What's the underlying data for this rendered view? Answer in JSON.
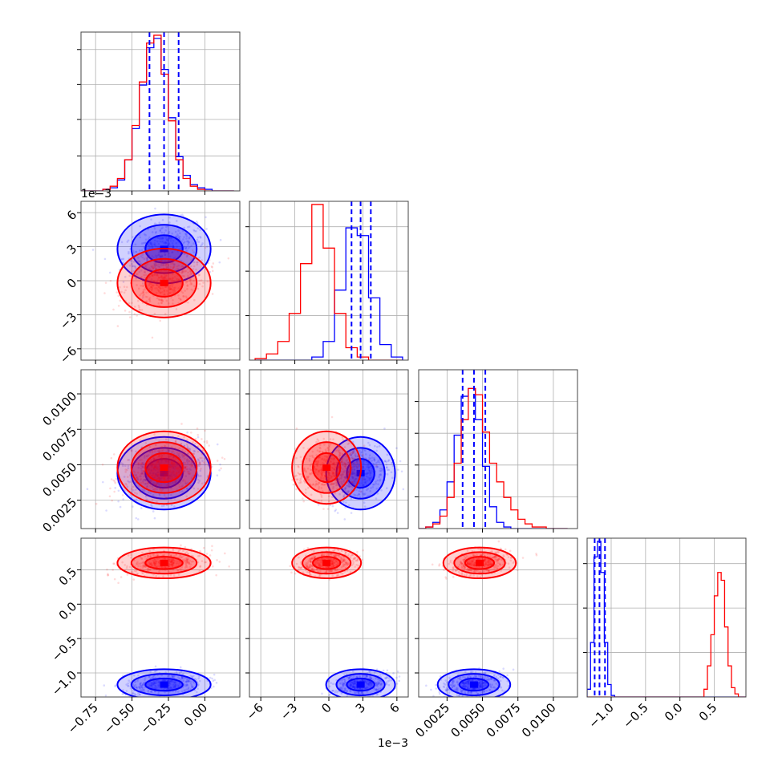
{
  "chart_data": {
    "type": "corner",
    "colors": {
      "red": "#ff0000",
      "blue": "#0000ff"
    },
    "series": [
      "red",
      "blue"
    ],
    "grid": true,
    "xlabel": "",
    "ylabel": "",
    "offsets": {
      "x1": "1e−3",
      "y1": "1e−3"
    },
    "ranges": [
      [
        -0.85,
        0.24
      ],
      [
        -7.0,
        7.0
      ],
      [
        0.0005,
        0.0117
      ],
      [
        -1.35,
        0.96
      ]
    ],
    "ticks": [
      {
        "values": [
          -0.75,
          -0.5,
          -0.25,
          0.0
        ],
        "labels": [
          "−0.75",
          "−0.50",
          "−0.25",
          "0.00"
        ]
      },
      {
        "values": [
          -6,
          -3,
          0,
          3,
          6
        ],
        "labels": [
          "−6",
          "−3",
          "0",
          "3",
          "6"
        ]
      },
      {
        "values": [
          0.0025,
          0.005,
          0.0075,
          0.01
        ],
        "labels": [
          "0.0025",
          "0.0050",
          "0.0075",
          "0.0100"
        ]
      },
      {
        "values": [
          -1.0,
          -0.5,
          0.0,
          0.5
        ],
        "labels": [
          "−1.0",
          "−0.5",
          "0.0",
          "0.5"
        ]
      }
    ],
    "y_ticks_row": [
      {
        "values": [],
        "labels": []
      },
      {
        "values": [
          6,
          3,
          0,
          -3,
          -6
        ],
        "labels": [
          "6",
          "3",
          "0",
          "−3",
          "−6"
        ]
      },
      {
        "values": [
          0.01,
          0.0075,
          0.005,
          0.0025
        ],
        "labels": [
          "0.0100",
          "0.0075",
          "0.0050",
          "0.0025"
        ]
      },
      {
        "values": [
          0.5,
          0.0,
          -0.5,
          -1.0
        ],
        "labels": [
          "0.5",
          "0.0",
          "−0.5",
          "−1.0"
        ]
      }
    ],
    "hist_ticks_y": [
      [
        0.22,
        0.45,
        0.67,
        0.89
      ],
      [
        0.28,
        0.56,
        0.84
      ],
      [
        0.2,
        0.4,
        0.6,
        0.8
      ],
      [
        0.28,
        0.56,
        0.84
      ]
    ],
    "means": [
      {
        "red": -0.28,
        "blue": -0.28,
        "sigma": 0.1
      },
      {
        "red": -0.2,
        "blue": 2.8,
        "sigma": 0.95
      },
      {
        "red": 0.0048,
        "blue": 0.0044,
        "sigma": 0.0008
      },
      {
        "red": 0.6,
        "blue": -1.17,
        "sigma": 0.07
      }
    ],
    "quantiles_blue": [
      [
        -0.38,
        -0.28,
        -0.18
      ],
      [
        2.0,
        2.8,
        3.7
      ],
      [
        0.0036,
        0.0044,
        0.0052
      ],
      [
        -1.24,
        -1.17,
        -1.09
      ]
    ],
    "histograms": [
      {
        "bins": [
          -0.85,
          -0.8,
          -0.75,
          -0.7,
          -0.65,
          -0.6,
          -0.55,
          -0.5,
          -0.45,
          -0.4,
          -0.35,
          -0.3,
          -0.25,
          -0.2,
          -0.15,
          -0.1,
          -0.05,
          0.0,
          0.05,
          0.1,
          0.15,
          0.2
        ],
        "red": [
          0,
          0,
          0,
          0.01,
          0.03,
          0.08,
          0.2,
          0.42,
          0.7,
          0.95,
          1.0,
          0.75,
          0.45,
          0.2,
          0.08,
          0.03,
          0.01,
          0,
          0,
          0,
          0
        ],
        "blue": [
          0,
          0,
          0,
          0.01,
          0.02,
          0.07,
          0.2,
          0.4,
          0.68,
          0.92,
          0.98,
          0.78,
          0.47,
          0.22,
          0.1,
          0.04,
          0.02,
          0.01,
          0,
          0,
          0
        ]
      },
      {
        "bins": [
          -6.5,
          -5.5,
          -4.5,
          -3.5,
          -2.5,
          -1.5,
          -0.5,
          0.5,
          1.5,
          2.5,
          3.5,
          4.5,
          5.5,
          6.5
        ],
        "red": [
          0.01,
          0.04,
          0.12,
          0.3,
          0.62,
          1.0,
          0.72,
          0.3,
          0.08,
          0.02,
          0.0,
          0,
          0
        ],
        "blue": [
          0,
          0,
          0,
          0,
          0,
          0.02,
          0.12,
          0.45,
          0.85,
          0.8,
          0.4,
          0.1,
          0.02
        ]
      },
      {
        "bins": [
          0.0005,
          0.001,
          0.0015,
          0.002,
          0.0025,
          0.003,
          0.0035,
          0.004,
          0.0045,
          0.005,
          0.0055,
          0.006,
          0.0065,
          0.007,
          0.0075,
          0.008,
          0.0085,
          0.009,
          0.0095,
          0.01,
          0.0105,
          0.011
        ],
        "red": [
          0,
          0.01,
          0.03,
          0.08,
          0.2,
          0.42,
          0.7,
          0.9,
          0.86,
          0.62,
          0.42,
          0.3,
          0.2,
          0.12,
          0.06,
          0.03,
          0.01,
          0.01,
          0,
          0,
          0
        ],
        "blue": [
          0,
          0.01,
          0.04,
          0.12,
          0.3,
          0.6,
          0.85,
          0.9,
          0.7,
          0.4,
          0.14,
          0.04,
          0.01,
          0,
          0,
          0,
          0,
          0,
          0,
          0,
          0
        ]
      },
      {
        "bins": [
          -1.35,
          -1.3,
          -1.25,
          -1.2,
          -1.15,
          -1.1,
          -1.05,
          -1.0,
          -0.95,
          -0.9,
          0.3,
          0.35,
          0.4,
          0.45,
          0.5,
          0.55,
          0.6,
          0.65,
          0.7,
          0.75,
          0.8,
          0.85,
          0.9,
          0.96
        ],
        "red": [
          0,
          0,
          0,
          0,
          0,
          0,
          0,
          0,
          0,
          0,
          0,
          0.05,
          0.2,
          0.4,
          0.65,
          0.8,
          0.75,
          0.45,
          0.2,
          0.06,
          0.02,
          0,
          0
        ],
        "blue": [
          0.05,
          0.35,
          0.9,
          1.0,
          0.8,
          0.35,
          0.08,
          0.01,
          0,
          0,
          0,
          0,
          0,
          0,
          0,
          0,
          0,
          0,
          0,
          0,
          0,
          0,
          0
        ]
      }
    ]
  }
}
